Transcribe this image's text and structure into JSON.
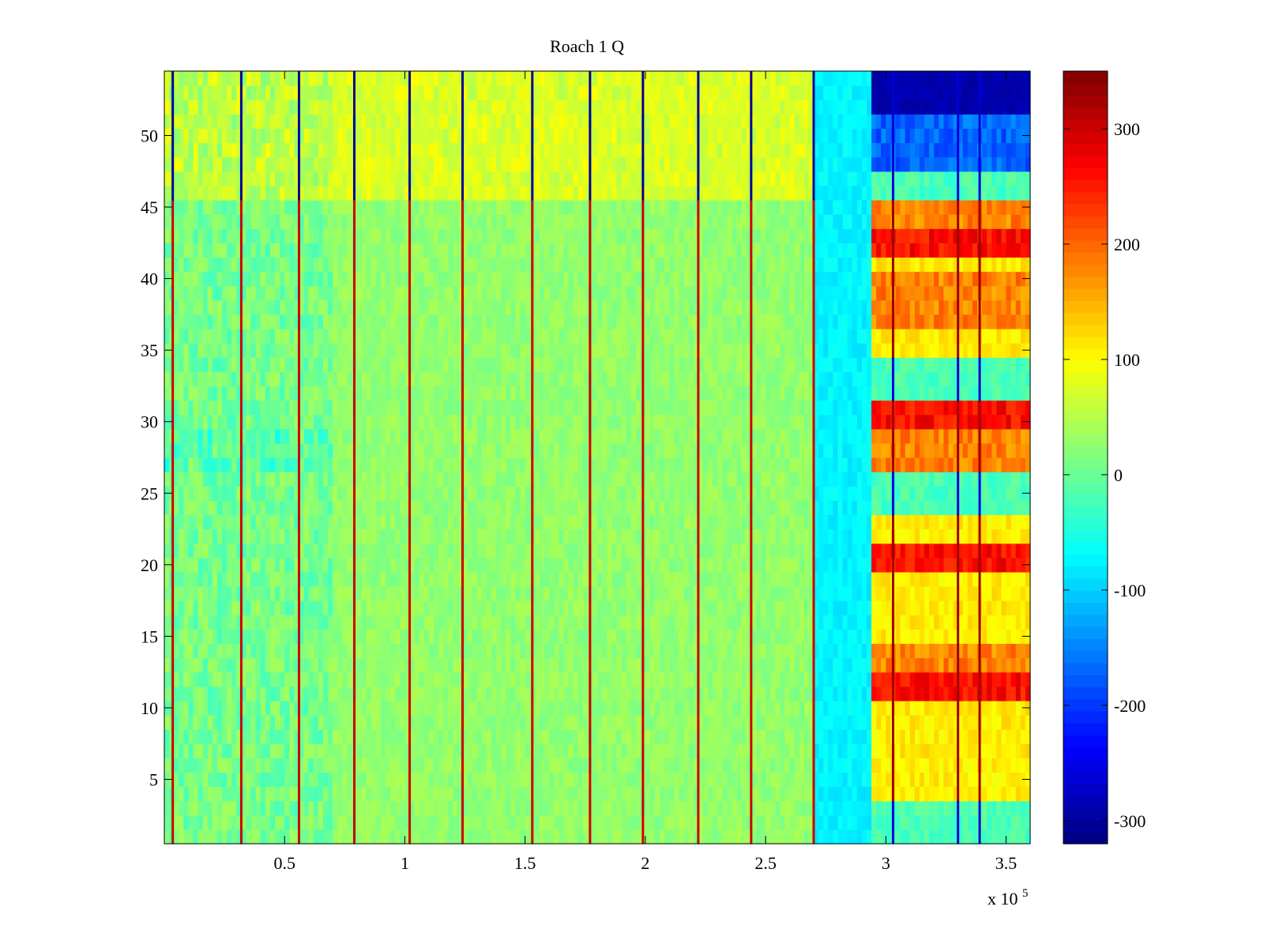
{
  "chart_data": {
    "type": "heatmap",
    "title": "Roach 1 Q",
    "xlabel": "",
    "ylabel": "",
    "x_exponent_label": "x 10",
    "x_exponent_power": "5",
    "xlim": [
      0,
      3.6
    ],
    "ylim": [
      0.5,
      54.5
    ],
    "xticks": [
      0.5,
      1,
      1.5,
      2,
      2.5,
      3,
      3.5
    ],
    "xtick_labels": [
      "0.5",
      "1",
      "1.5",
      "2",
      "2.5",
      "3",
      "3.5"
    ],
    "yticks": [
      5,
      10,
      15,
      20,
      25,
      30,
      35,
      40,
      45,
      50
    ],
    "ytick_labels": [
      "5",
      "10",
      "15",
      "20",
      "25",
      "30",
      "35",
      "40",
      "45",
      "50"
    ],
    "rows": 54,
    "colormap": "jet",
    "clim": [
      -320,
      350
    ],
    "colorbar_ticks": [
      300,
      200,
      100,
      0,
      -100,
      -200,
      -300
    ],
    "colorbar_tick_labels": [
      "300",
      "200",
      "100",
      "0",
      "-100",
      "-200",
      "-300"
    ],
    "stripes_x": [
      0.035,
      0.32,
      0.56,
      0.79,
      1.02,
      1.24,
      1.53,
      1.77,
      1.99,
      2.22,
      2.44,
      2.7,
      3.03,
      3.3,
      3.39
    ],
    "segments": [
      {
        "x0": 0.0,
        "x1": 0.7,
        "base_low": -25,
        "base_high": 40
      },
      {
        "x0": 0.7,
        "x1": 2.7,
        "base_low": 10,
        "base_high": 45
      },
      {
        "x0": 2.7,
        "x1": 2.93,
        "base_low": -90,
        "base_high": -60
      },
      {
        "x0": 2.93,
        "x1": 3.6,
        "base_low": 50,
        "base_high": 210
      }
    ],
    "right_region_rows": {
      "very_high": [
        11,
        12,
        20,
        21,
        30,
        31,
        42,
        43
      ],
      "high": [
        13,
        14,
        27,
        28,
        29,
        37,
        38,
        39,
        40,
        44,
        45
      ],
      "neutral": [
        1,
        2,
        3,
        24,
        25,
        26,
        32,
        33,
        34,
        46,
        47
      ],
      "very_low": [
        48,
        49,
        50,
        51,
        52,
        53,
        54
      ]
    },
    "colors": {
      "background": "#ffffff",
      "axes": "#000000"
    }
  }
}
